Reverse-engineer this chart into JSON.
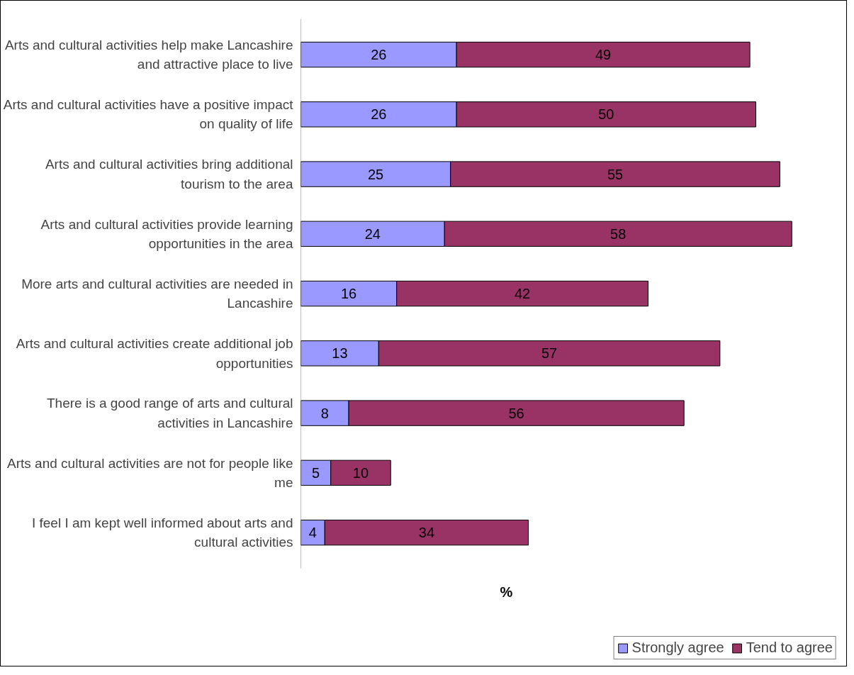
{
  "chart_data": {
    "type": "bar",
    "orientation": "horizontal",
    "stacked": true,
    "xlabel": "%",
    "categories": [
      "Arts and cultural activities help make Lancashire and attractive place to live",
      "Arts and cultural activities have a positive impact on quality of life",
      "Arts and cultural activities bring additional tourism to the area",
      "Arts and cultural activities provide learning opportunities in the area",
      "More arts and cultural activities are needed in Lancashire",
      "Arts and cultural activities create additional job opportunities",
      "There is a good range of arts and cultural activities in Lancashire",
      "Arts and cultural activities are not for people like me",
      "I feel I am kept well informed about arts and cultural activities"
    ],
    "series": [
      {
        "name": "Strongly agree",
        "color": "#9999ff",
        "values": [
          26,
          26,
          25,
          24,
          16,
          13,
          8,
          5,
          4
        ]
      },
      {
        "name": "Tend to agree",
        "color": "#993366",
        "values": [
          49,
          50,
          55,
          58,
          42,
          57,
          56,
          10,
          34
        ]
      }
    ],
    "data_labels": true,
    "legend": "bottom",
    "grid": false,
    "tick_labels": "y"
  }
}
